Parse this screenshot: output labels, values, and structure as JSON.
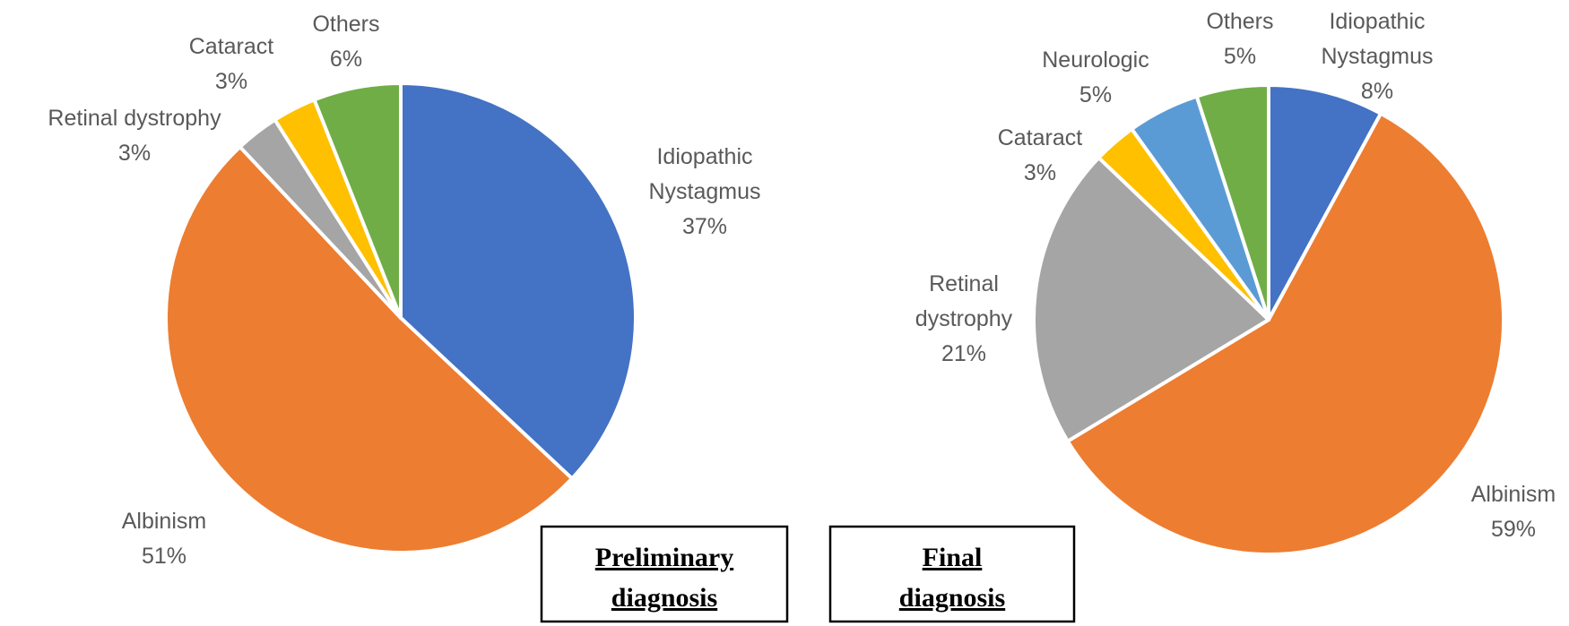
{
  "chart_data": [
    {
      "type": "pie",
      "title": "Preliminary diagnosis",
      "title_lines": [
        "Preliminary",
        "diagnosis"
      ],
      "slices": [
        {
          "name": "Idiopathic Nystagmus",
          "name_lines": [
            "Idiopathic",
            "Nystagmus"
          ],
          "value": 37,
          "label": "37%",
          "color": "#4472C4"
        },
        {
          "name": "Albinism",
          "name_lines": [
            "Albinism"
          ],
          "value": 51,
          "label": "51%",
          "color": "#ED7D31"
        },
        {
          "name": "Retinal dystrophy",
          "name_lines": [
            "Retinal dystrophy"
          ],
          "value": 3,
          "label": "3%",
          "color": "#A5A5A5"
        },
        {
          "name": "Cataract",
          "name_lines": [
            "Cataract"
          ],
          "value": 3,
          "label": "3%",
          "color": "#FFC000"
        },
        {
          "name": "Others",
          "name_lines": [
            "Others"
          ],
          "value": 6,
          "label": "6%",
          "color": "#70AD47"
        }
      ]
    },
    {
      "type": "pie",
      "title": "Final diagnosis",
      "title_lines": [
        "Final",
        "diagnosis"
      ],
      "slices": [
        {
          "name": "Idiopathic Nystagmus",
          "name_lines": [
            "Idiopathic",
            "Nystagmus"
          ],
          "value": 8,
          "label": "8%",
          "color": "#4472C4"
        },
        {
          "name": "Albinism",
          "name_lines": [
            "Albinism"
          ],
          "value": 59,
          "label": "59%",
          "color": "#ED7D31"
        },
        {
          "name": "Retinal dystrophy",
          "name_lines": [
            "Retinal",
            "dystrophy"
          ],
          "value": 21,
          "label": "21%",
          "color": "#A5A5A5"
        },
        {
          "name": "Cataract",
          "name_lines": [
            "Cataract"
          ],
          "value": 3,
          "label": "3%",
          "color": "#FFC000"
        },
        {
          "name": "Neurologic",
          "name_lines": [
            "Neurologic"
          ],
          "value": 5,
          "label": "5%",
          "color": "#5B9BD5"
        },
        {
          "name": "Others",
          "name_lines": [
            "Others"
          ],
          "value": 5,
          "label": "5%",
          "color": "#70AD47"
        }
      ]
    }
  ]
}
